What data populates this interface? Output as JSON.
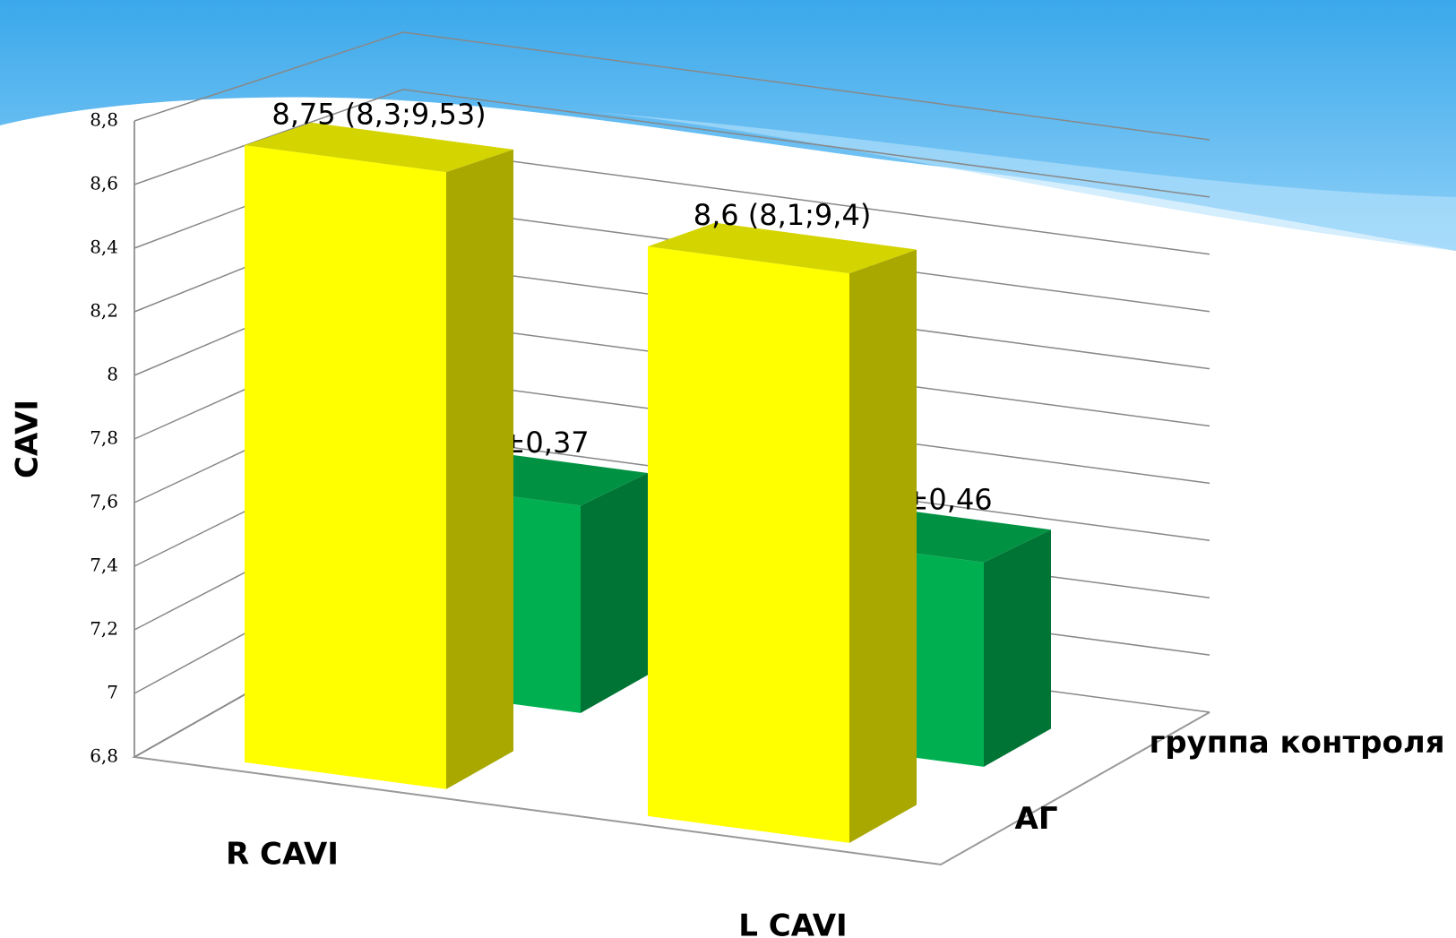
{
  "chart_data": {
    "type": "bar3d",
    "y_label": "CAVI",
    "categories": [
      "R CAVI",
      "L CAVI"
    ],
    "series": [
      {
        "name": "АГ",
        "color": "#ffff00",
        "values": [
          8.75,
          8.6
        ],
        "value_labels": [
          "8,75 (8,3;9,53)",
          "8,6 (8,1;9,4)"
        ]
      },
      {
        "name": "группа контроля",
        "color": "#00b050",
        "values": [
          7.49,
          7.48
        ],
        "value_labels": [
          "7,49±0,37",
          "7,48±0,46"
        ]
      }
    ],
    "ylim": [
      6.8,
      8.8
    ],
    "yticks": [
      {
        "value": 6.8,
        "label": "6,8"
      },
      7,
      {
        "value": 7.2,
        "label": "7,2"
      },
      {
        "value": 7.4,
        "label": "7,4"
      },
      {
        "value": 7.6,
        "label": "7,6"
      },
      {
        "value": 7.8,
        "label": "7,8"
      },
      8,
      {
        "value": 8.2,
        "label": "8,2"
      },
      {
        "value": 8.4,
        "label": "8,4"
      },
      {
        "value": 8.6,
        "label": "8,6"
      },
      {
        "value": 8.8,
        "label": "8,8"
      }
    ],
    "grid": true
  }
}
